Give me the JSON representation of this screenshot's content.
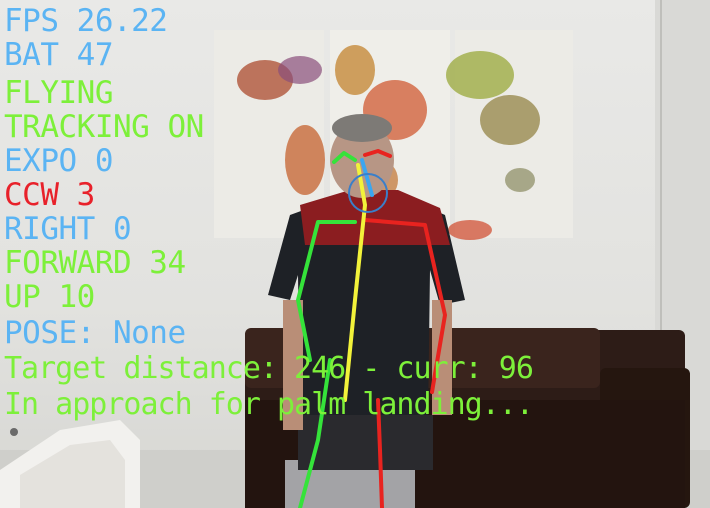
{
  "hud": {
    "fps": "FPS 26.22",
    "bat": "BAT 47",
    "state": "FLYING",
    "tracking": "TRACKING ON",
    "expo": "EXPO 0",
    "ccw": "CCW 3",
    "right": "RIGHT 0",
    "forward": "FORWARD 34",
    "up": "UP 10",
    "pose": "POSE: None",
    "target": "Target distance: 246 - curr: 96",
    "landing": "In approach for palm landing..."
  },
  "colors": {
    "hud_blue": "#5bb4f3",
    "hud_green": "#7df03a",
    "hud_red": "#e8212a",
    "skeleton_green": "#35e33a",
    "skeleton_red": "#e8231f",
    "skeleton_yellow": "#f2f23a",
    "skeleton_blue": "#3aa6f0"
  },
  "icons": [
    "skeleton-overlay",
    "world-map-painting"
  ]
}
